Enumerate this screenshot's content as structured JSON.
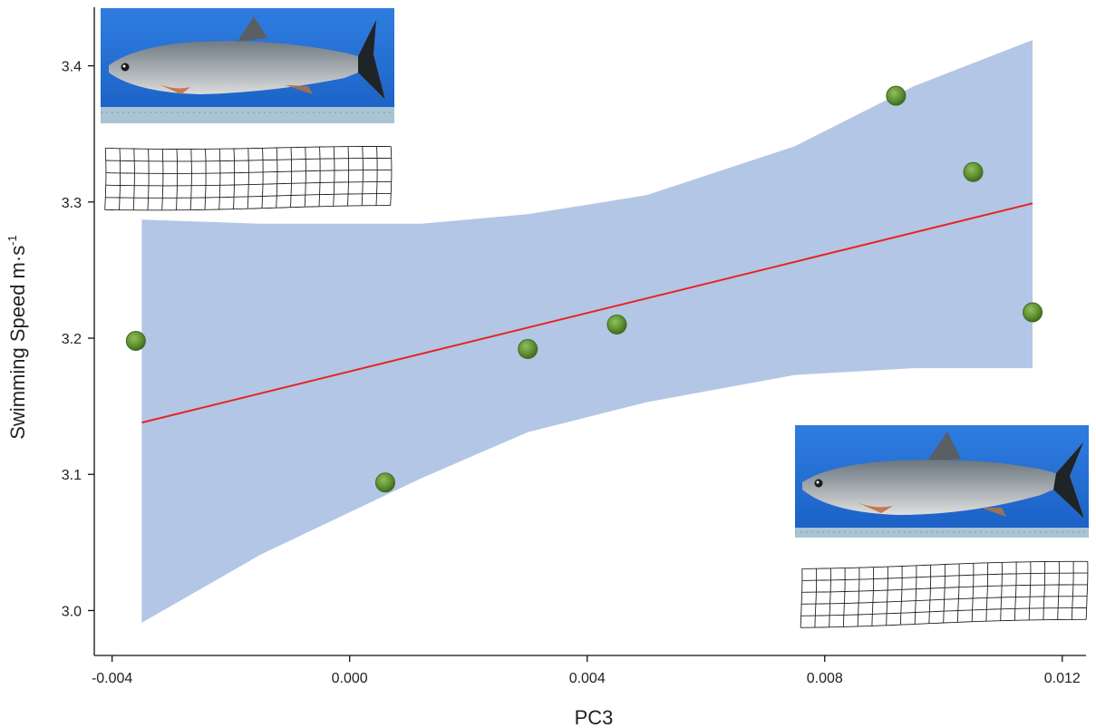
{
  "chart_data": {
    "type": "scatter",
    "title": "",
    "xlabel": "PC3",
    "ylabel": "Swimming Speed m·s",
    "ylabel_superscript": "-1",
    "xlim": [
      -0.0043,
      0.0124
    ],
    "ylim": [
      2.967,
      3.443
    ],
    "x_ticks": [
      -0.004,
      0.0,
      0.004,
      0.008,
      0.012
    ],
    "x_tick_labels": [
      "-0.004",
      "0.000",
      "0.004",
      "0.008",
      "0.012"
    ],
    "y_ticks": [
      3.0,
      3.1,
      3.2,
      3.3,
      3.4
    ],
    "y_tick_labels": [
      "3.0",
      "3.1",
      "3.2",
      "3.3",
      "3.4"
    ],
    "grid": false,
    "points": [
      {
        "x": -0.0036,
        "y": 3.198
      },
      {
        "x": 0.0006,
        "y": 3.094
      },
      {
        "x": 0.003,
        "y": 3.192
      },
      {
        "x": 0.0045,
        "y": 3.21
      },
      {
        "x": 0.0092,
        "y": 3.378
      },
      {
        "x": 0.0105,
        "y": 3.322
      },
      {
        "x": 0.0115,
        "y": 3.219
      }
    ],
    "fit_line": {
      "x": [
        -0.0035,
        0.0115
      ],
      "y": [
        3.138,
        3.299
      ]
    },
    "confidence_band": {
      "x": [
        -0.0035,
        -0.0015,
        0.0012,
        0.003,
        0.005,
        0.0075,
        0.0095,
        0.0115
      ],
      "upper": [
        3.287,
        3.284,
        3.284,
        3.291,
        3.305,
        3.341,
        3.385,
        3.419
      ],
      "lower": [
        2.991,
        3.041,
        3.097,
        3.131,
        3.153,
        3.173,
        3.178,
        3.178
      ]
    },
    "colors": {
      "points": "#5a8a2e",
      "points_highlight": "#8fc05a",
      "fit_line": "#e8231f",
      "band": "#b3c6e6",
      "axis": "#111111"
    },
    "insets": [
      {
        "type": "photo",
        "subject": "fish",
        "position": "top-left"
      },
      {
        "type": "deformation-grid",
        "position": "top-left"
      },
      {
        "type": "photo",
        "subject": "fish",
        "position": "bottom-right"
      },
      {
        "type": "deformation-grid",
        "position": "bottom-right"
      }
    ]
  }
}
